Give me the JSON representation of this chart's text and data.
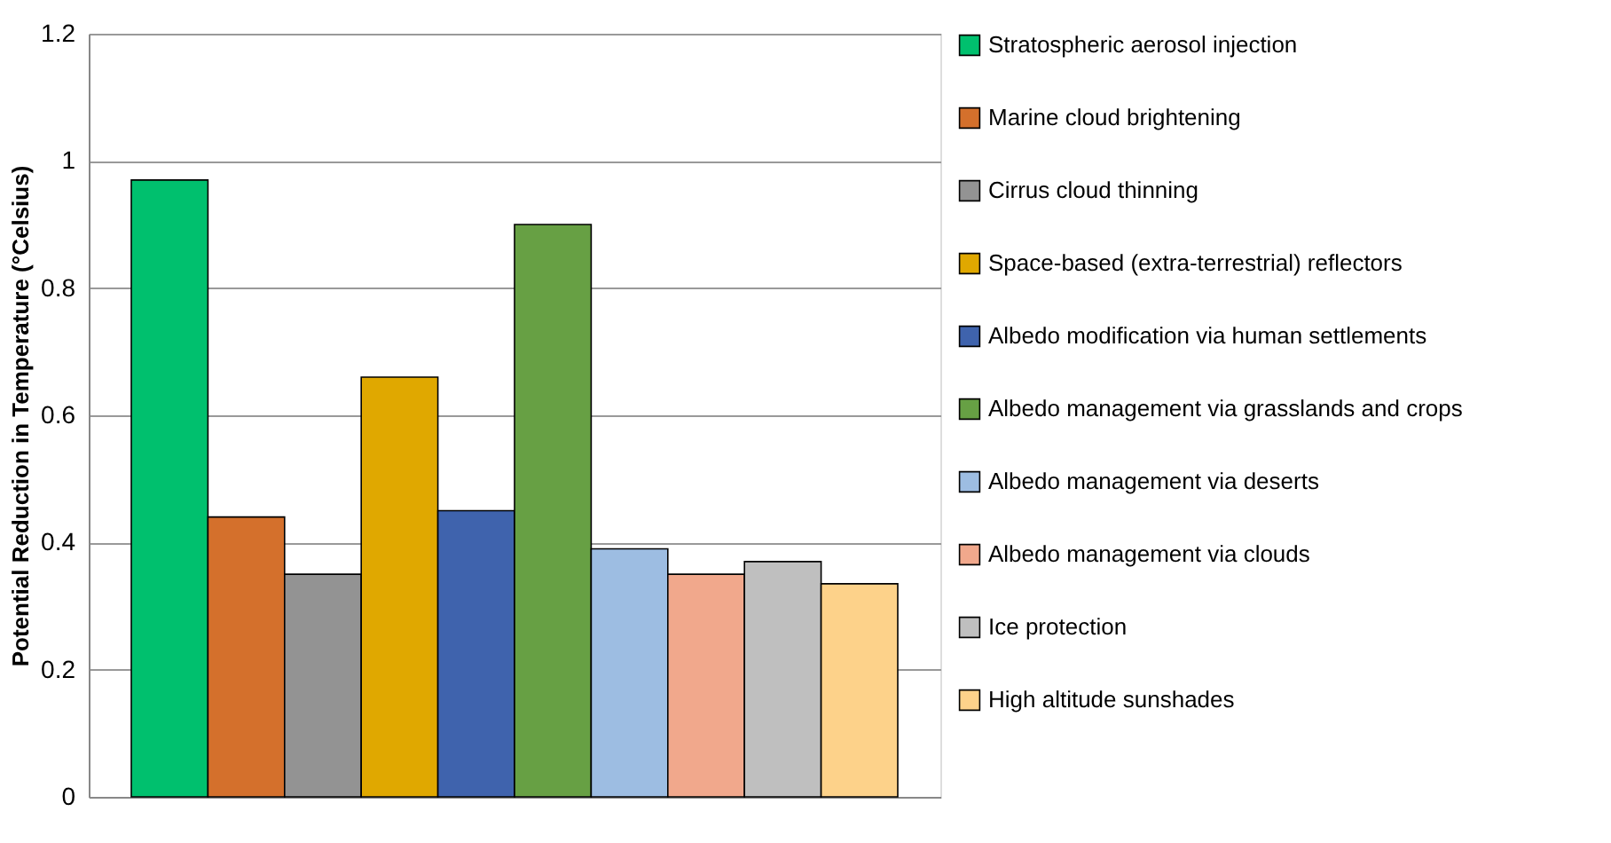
{
  "chart_data": {
    "type": "bar",
    "ylabel": "Potential Reduction in Temperature (°Celsius)",
    "categories": [
      null
    ],
    "series": [
      {
        "name": "Stratospheric aerosol injection",
        "color": "#00c06e",
        "values": [
          0.97
        ]
      },
      {
        "name": "Marine cloud brightening",
        "color": "#d4702c",
        "values": [
          0.44
        ]
      },
      {
        "name": "Cirrus cloud thinning",
        "color": "#939393",
        "values": [
          0.35
        ]
      },
      {
        "name": "Space-based (extra-terrestrial) reflectors",
        "color": "#e0a800",
        "values": [
          0.66
        ]
      },
      {
        "name": "Albedo modification via human settlements",
        "color": "#3f63ad",
        "values": [
          0.45
        ]
      },
      {
        "name": "Albedo management via grasslands and crops",
        "color": "#67a044",
        "values": [
          0.9
        ]
      },
      {
        "name": "Albedo management via deserts",
        "color": "#9dbde2",
        "values": [
          0.39
        ]
      },
      {
        "name": "Albedo management via clouds",
        "color": "#f1a88c",
        "values": [
          0.35
        ]
      },
      {
        "name": "Ice protection",
        "color": "#bfbfbf",
        "values": [
          0.37
        ]
      },
      {
        "name": "High altitude sunshades",
        "color": "#fdd28a",
        "values": [
          0.335
        ]
      }
    ],
    "ylim": [
      0,
      1.2
    ],
    "yticks": [
      0,
      0.2,
      0.4,
      0.6,
      0.8,
      1,
      1.2
    ],
    "grid": "y",
    "legend": "right",
    "tick_labels": "y"
  }
}
